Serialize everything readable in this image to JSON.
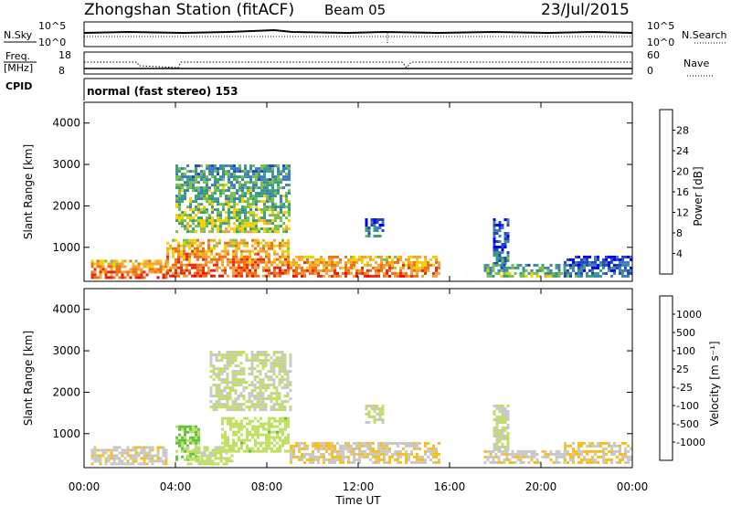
{
  "header": {
    "station": "Zhongshan Station (fitACF)",
    "beam": "Beam 05",
    "date": "23/Jul/2015"
  },
  "top_strip": {
    "nsky_label": "N.Sky",
    "nsky_ticks": [
      "10^5",
      "10^0"
    ],
    "nsearch_label": "N.Search",
    "nsearch_ticks": [
      "10^5",
      "10^0"
    ],
    "freq_label": "Freq.",
    "freq_unit": "[MHz]",
    "freq_ticks": [
      "18",
      "8"
    ],
    "nave_label": "Nave",
    "nave_ticks": [
      "60",
      "0"
    ],
    "cpid_label": "CPID",
    "cpid_text": "normal (fast stereo) 153"
  },
  "chart_data": [
    {
      "type": "heatmap",
      "name": "power",
      "ylabel": "Slant Range [km]",
      "yticks": [
        "4000",
        "3000",
        "2000",
        "1000"
      ],
      "ylim": [
        180,
        4500
      ],
      "xlim": [
        0,
        24
      ],
      "colorbar": {
        "label": "Power [dB]",
        "ticks": [
          "28",
          "24",
          "20",
          "16",
          "12",
          "8",
          "4"
        ],
        "range": [
          0,
          32
        ],
        "colors": [
          "#0000ff",
          "#2448b8",
          "#3d7dbe",
          "#3aa07a",
          "#79c04a",
          "#f4d000",
          "#f3a23a",
          "#f07010",
          "#e82a10",
          "#ff0000"
        ]
      },
      "echo_regions": [
        {
          "t": [
            0.3,
            3.6
          ],
          "r": [
            300,
            700
          ],
          "level": "high"
        },
        {
          "t": [
            3.6,
            9.0
          ],
          "r": [
            300,
            1200
          ],
          "level": "high"
        },
        {
          "t": [
            4.0,
            9.0
          ],
          "r": [
            1400,
            3000
          ],
          "level": "medium"
        },
        {
          "t": [
            9.0,
            15.5
          ],
          "r": [
            300,
            800
          ],
          "level": "high"
        },
        {
          "t": [
            12.3,
            13.1
          ],
          "r": [
            1300,
            1700
          ],
          "level": "low"
        },
        {
          "t": [
            17.9,
            18.6
          ],
          "r": [
            600,
            1700
          ],
          "level": "low"
        },
        {
          "t": [
            17.5,
            21.0
          ],
          "r": [
            300,
            600
          ],
          "level": "medium"
        },
        {
          "t": [
            21.0,
            24.0
          ],
          "r": [
            300,
            800
          ],
          "level": "low"
        }
      ]
    },
    {
      "type": "heatmap",
      "name": "velocity",
      "ylabel": "Slant Range [km]",
      "yticks": [
        "4000",
        "3000",
        "2000",
        "1000"
      ],
      "ylim": [
        180,
        4500
      ],
      "xlim": [
        0,
        24
      ],
      "xlabel": "Time UT",
      "xticks": [
        "00:00",
        "04:00",
        "08:00",
        "12:00",
        "16:00",
        "20:00",
        "00:00"
      ],
      "colorbar": {
        "label": "Velocity [m s⁻¹]",
        "ticks": [
          "1000",
          "500",
          "100",
          "25",
          "-25",
          "-100",
          "-500",
          "-1000"
        ],
        "range": [
          -1200,
          1200
        ],
        "colors": [
          "#e82010",
          "#f06010",
          "#f49020",
          "#f4c020",
          "#c8c8c8",
          "#bfe060",
          "#60c040",
          "#3c8c60",
          "#2a5caa",
          "#1a30c0"
        ]
      },
      "echo_regions": [
        {
          "t": [
            0.3,
            3.6
          ],
          "r": [
            300,
            700
          ],
          "v": -200
        },
        {
          "t": [
            4.0,
            5.0
          ],
          "r": [
            400,
            1200
          ],
          "v": 300
        },
        {
          "t": [
            4.5,
            6.5
          ],
          "r": [
            300,
            700
          ],
          "v": 80
        },
        {
          "t": [
            5.5,
            9.0
          ],
          "r": [
            1600,
            3000
          ],
          "v": 0
        },
        {
          "t": [
            6.0,
            9.0
          ],
          "r": [
            600,
            1400
          ],
          "v": 150
        },
        {
          "t": [
            9.0,
            15.5
          ],
          "r": [
            300,
            800
          ],
          "v": -250
        },
        {
          "t": [
            12.3,
            13.1
          ],
          "r": [
            1300,
            1700
          ],
          "v": 0
        },
        {
          "t": [
            17.9,
            18.6
          ],
          "r": [
            600,
            1700
          ],
          "v": 0
        },
        {
          "t": [
            17.5,
            21.0
          ],
          "r": [
            300,
            600
          ],
          "v": -200
        },
        {
          "t": [
            21.0,
            24.0
          ],
          "r": [
            300,
            800
          ],
          "v": -300
        }
      ]
    }
  ]
}
